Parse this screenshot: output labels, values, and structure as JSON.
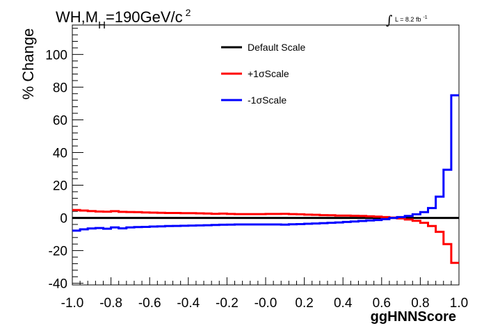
{
  "chart_data": {
    "type": "line",
    "title": {
      "main": "WH,M",
      "subscript": "H",
      "after": "=190GeV/c",
      "superscript": "2"
    },
    "lumi": {
      "symbol": "∫",
      "text": "L = 8.2 fb",
      "superscript": "-1"
    },
    "xlabel": "ggHNNScore",
    "ylabel": "% Change",
    "xlim": [
      -1.0,
      1.0
    ],
    "ylim": [
      -41,
      118
    ],
    "x_ticks": [
      "-1.0",
      "-0.8",
      "-0.6",
      "-0.4",
      "-0.2",
      "-0.0",
      "0.2",
      "0.4",
      "0.6",
      "0.8",
      "1.0"
    ],
    "y_ticks": [
      "-40",
      "-20",
      "0",
      "20",
      "40",
      "60",
      "80",
      "100"
    ],
    "legend_position": "top-center",
    "bin_edges": [
      -1.0,
      -0.96,
      -0.92,
      -0.88,
      -0.84,
      -0.8,
      -0.76,
      -0.72,
      -0.68,
      -0.64,
      -0.6,
      -0.56,
      -0.52,
      -0.48,
      -0.44,
      -0.4,
      -0.36,
      -0.32,
      -0.28,
      -0.24,
      -0.2,
      -0.16,
      -0.12,
      -0.08,
      -0.04,
      0.0,
      0.04,
      0.08,
      0.12,
      0.16,
      0.2,
      0.24,
      0.28,
      0.32,
      0.36,
      0.4,
      0.44,
      0.48,
      0.52,
      0.56,
      0.6,
      0.64,
      0.68,
      0.72,
      0.76,
      0.8,
      0.84,
      0.88,
      0.92,
      0.96,
      1.0
    ],
    "series": [
      {
        "name": "Default Scale",
        "color": "#000000",
        "values": [
          0,
          0,
          0,
          0,
          0,
          0,
          0,
          0,
          0,
          0,
          0,
          0,
          0,
          0,
          0,
          0,
          0,
          0,
          0,
          0,
          0,
          0,
          0,
          0,
          0,
          0,
          0,
          0,
          0,
          0,
          0,
          0,
          0,
          0,
          0,
          0,
          0,
          0,
          0,
          0,
          0,
          0,
          0,
          0,
          0,
          0,
          0,
          0,
          0,
          0
        ]
      },
      {
        "name": "+1σScale",
        "color": "#ff0000",
        "values": [
          4.8,
          4.5,
          4.2,
          3.9,
          3.8,
          4.1,
          3.7,
          3.6,
          3.5,
          3.3,
          3.2,
          3.1,
          3.0,
          3.0,
          2.9,
          2.9,
          2.8,
          2.7,
          2.5,
          2.6,
          2.4,
          2.3,
          2.3,
          2.3,
          2.3,
          2.4,
          2.4,
          2.5,
          2.3,
          2.2,
          2.0,
          1.9,
          1.7,
          1.6,
          1.4,
          1.4,
          1.3,
          1.2,
          1.0,
          0.8,
          0.5,
          0.2,
          -0.3,
          -1.0,
          -1.8,
          -3.0,
          -5.0,
          -8.5,
          -16.0,
          -27.5
        ]
      },
      {
        "name": "-1σScale",
        "color": "#0000ff",
        "values": [
          -7.8,
          -7.0,
          -6.5,
          -6.2,
          -6.6,
          -5.8,
          -6.4,
          -5.8,
          -5.6,
          -5.5,
          -5.3,
          -5.2,
          -5.0,
          -4.9,
          -4.8,
          -4.7,
          -4.6,
          -4.5,
          -4.3,
          -4.2,
          -4.1,
          -4.0,
          -4.0,
          -4.0,
          -4.0,
          -4.0,
          -4.0,
          -4.1,
          -3.9,
          -3.8,
          -3.6,
          -3.4,
          -3.2,
          -3.0,
          -2.8,
          -2.5,
          -2.2,
          -1.9,
          -1.6,
          -1.3,
          -0.8,
          0.0,
          0.5,
          1.2,
          2.2,
          3.5,
          6.0,
          13.0,
          29.5,
          75.0
        ]
      }
    ]
  }
}
